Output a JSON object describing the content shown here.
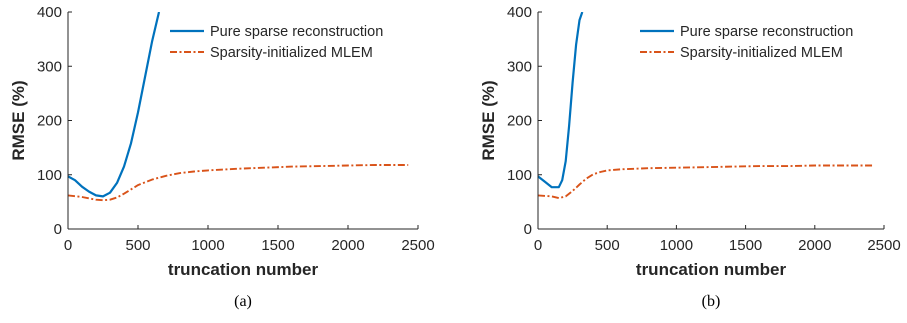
{
  "colors": {
    "pure": "#0072BD",
    "mlem": "#D95319",
    "axis": "#262626"
  },
  "chart_data": [
    {
      "type": "line",
      "panel_label": "(a)",
      "xlabel": "truncation number",
      "ylabel": "RMSE (%)",
      "xlim": [
        0,
        2500
      ],
      "ylim": [
        0,
        400
      ],
      "xticks": [
        0,
        500,
        1000,
        1500,
        2000,
        2500
      ],
      "yticks": [
        0,
        100,
        200,
        300,
        400
      ],
      "grid": false,
      "legend_position": "top-right",
      "series": [
        {
          "name": "Pure sparse reconstruction",
          "style": "solid",
          "x": [
            0,
            50,
            100,
            150,
            200,
            250,
            300,
            350,
            400,
            450,
            500,
            550,
            600,
            650
          ],
          "y": [
            97,
            90,
            78,
            69,
            62,
            60,
            67,
            85,
            115,
            158,
            215,
            280,
            345,
            400
          ]
        },
        {
          "name": "Sparsity-initialized MLEM",
          "style": "dashdot",
          "x": [
            0,
            100,
            200,
            250,
            300,
            350,
            400,
            450,
            500,
            600,
            700,
            800,
            900,
            1000,
            1200,
            1400,
            1600,
            1800,
            2000,
            2200,
            2430
          ],
          "y": [
            62,
            59,
            54,
            53,
            54,
            58,
            65,
            73,
            81,
            91,
            98,
            103,
            106,
            108,
            111,
            113,
            115,
            116,
            117,
            118,
            118
          ]
        }
      ]
    },
    {
      "type": "line",
      "panel_label": "(b)",
      "xlabel": "truncation number",
      "ylabel": "RMSE (%)",
      "xlim": [
        0,
        2500
      ],
      "ylim": [
        0,
        400
      ],
      "xticks": [
        0,
        500,
        1000,
        1500,
        2000,
        2500
      ],
      "yticks": [
        0,
        100,
        200,
        300,
        400
      ],
      "grid": false,
      "legend_position": "top-right",
      "series": [
        {
          "name": "Pure sparse reconstruction",
          "style": "solid",
          "x": [
            0,
            50,
            100,
            150,
            175,
            200,
            225,
            250,
            275,
            300,
            320
          ],
          "y": [
            97,
            87,
            77,
            77,
            90,
            125,
            190,
            270,
            340,
            385,
            400
          ]
        },
        {
          "name": "Sparsity-initialized MLEM",
          "style": "dashdot",
          "x": [
            0,
            100,
            150,
            200,
            250,
            300,
            350,
            400,
            450,
            500,
            600,
            800,
            1000,
            1200,
            1400,
            1600,
            1800,
            2000,
            2200,
            2430
          ],
          "y": [
            62,
            60,
            57,
            60,
            70,
            82,
            93,
            101,
            105,
            108,
            110,
            112,
            113,
            114,
            115,
            116,
            116,
            117,
            117,
            117
          ]
        }
      ]
    }
  ]
}
